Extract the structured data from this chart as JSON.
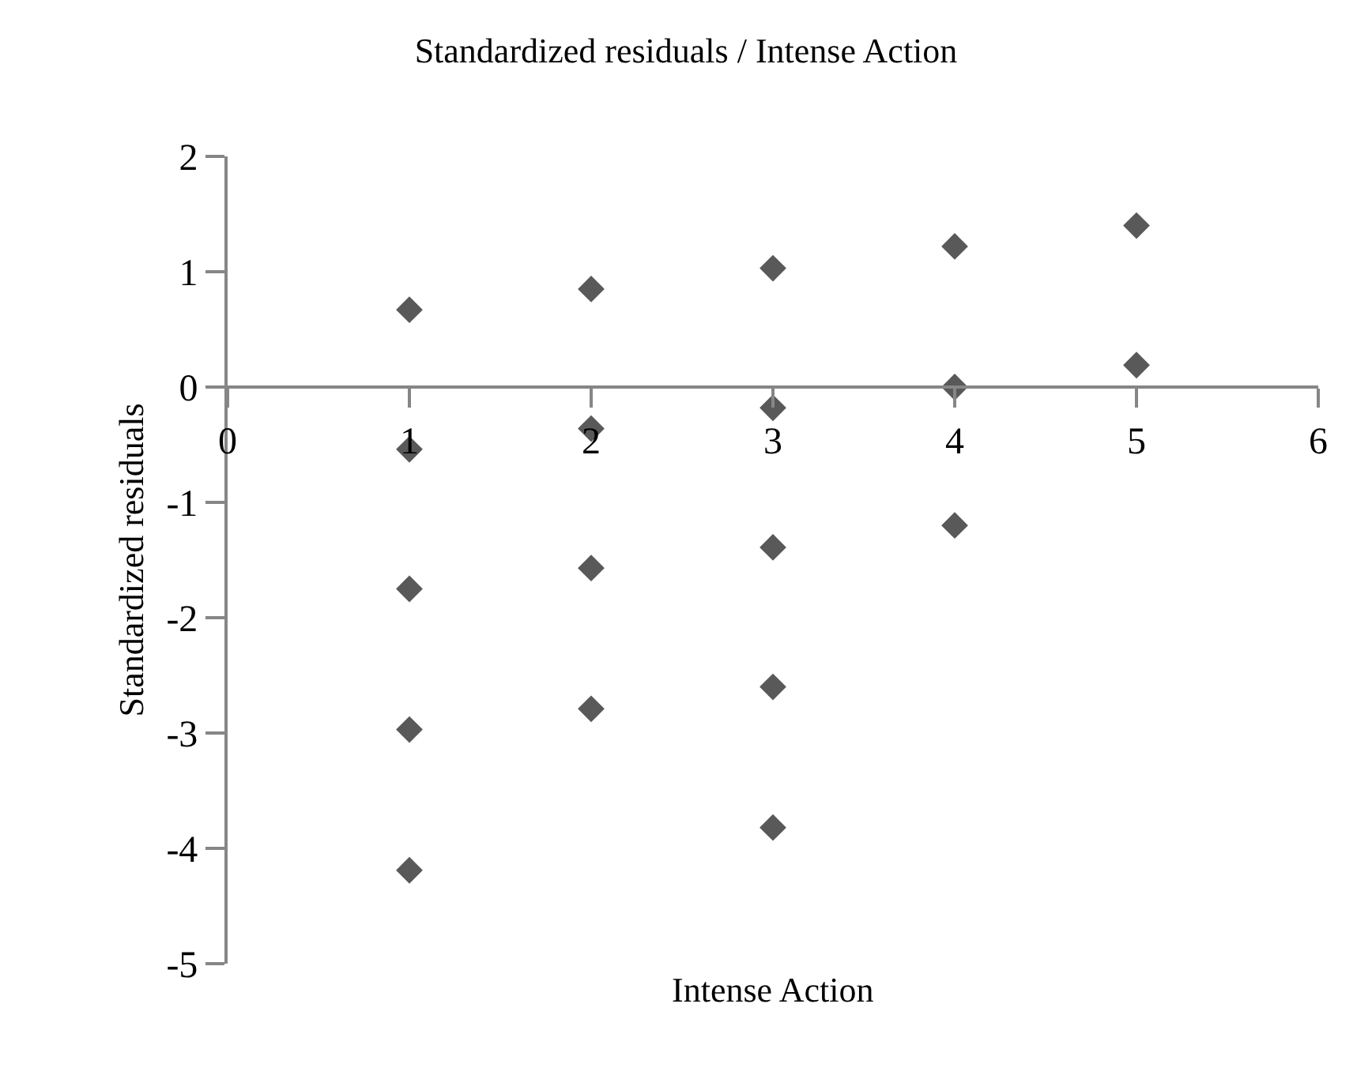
{
  "chart_data": {
    "type": "scatter",
    "title": "Standardized residuals / Intense Action",
    "xlabel": "Intense Action",
    "ylabel": "Standardized residuals",
    "x": [
      1,
      1,
      1,
      1,
      1,
      2,
      2,
      2,
      2,
      3,
      3,
      3,
      3,
      3,
      4,
      4,
      4,
      5,
      5
    ],
    "values": [
      0.67,
      -0.54,
      -1.75,
      -2.97,
      -4.19,
      0.85,
      -0.36,
      -1.57,
      -2.79,
      1.03,
      -0.18,
      -1.39,
      -2.6,
      -3.82,
      1.22,
      0.0,
      -1.2,
      1.4,
      0.19
    ],
    "color": "#595959",
    "marker": "diamond",
    "xlim": [
      0,
      6
    ],
    "xticks": [
      0,
      1,
      2,
      3,
      4,
      5,
      6
    ],
    "ylim": [
      -5,
      2
    ],
    "yticks": [
      -5,
      -4,
      -3,
      -2,
      -1,
      0,
      1,
      2
    ],
    "grid": false
  }
}
